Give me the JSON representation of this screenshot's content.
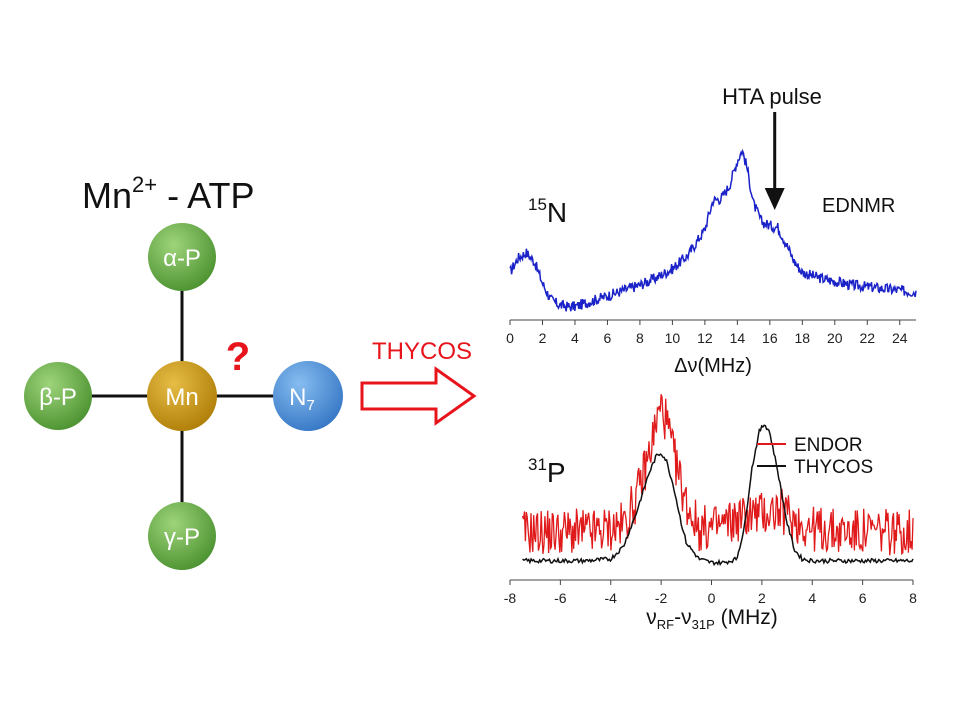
{
  "title": {
    "main": "Mn",
    "sup": "2+",
    "rest": " - ATP"
  },
  "nodes": {
    "alpha": {
      "label": "α-P",
      "color": "#5fa642"
    },
    "beta": {
      "label": "β-P",
      "color": "#5fa642"
    },
    "gamma": {
      "label": "γ-P",
      "color": "#5fa642"
    },
    "mn": {
      "label": "Mn",
      "color": "#c9960f"
    },
    "n7": {
      "label": "N",
      "sub": "7",
      "color": "#4a8fd8"
    }
  },
  "question_mark": "?",
  "arrow": {
    "label": "THYCOS",
    "color": "#e8141b"
  },
  "chart_data": [
    {
      "type": "line",
      "annotations": {
        "nucleus_sup": "15",
        "nucleus": "N",
        "method": "EDNMR",
        "pointer": "HTA pulse",
        "pointer_x": 16.3
      },
      "xlabel": "Δν(MHz)",
      "xlim": [
        0,
        25
      ],
      "xticks": [
        0,
        2,
        4,
        6,
        8,
        10,
        12,
        14,
        16,
        18,
        20,
        22,
        24
      ],
      "ylim": [
        0,
        1
      ],
      "series": [
        {
          "color": "#1a22c8",
          "x": [
            0,
            0.5,
            1,
            1.5,
            2,
            2.5,
            3,
            3.5,
            4,
            5,
            6,
            7,
            8,
            9,
            10,
            11,
            12,
            12.5,
            13,
            13.5,
            14,
            14.3,
            14.6,
            15,
            15.5,
            16,
            16.5,
            17,
            17.5,
            18,
            19,
            20,
            21,
            22,
            23,
            24,
            25
          ],
          "y": [
            0.22,
            0.3,
            0.33,
            0.28,
            0.16,
            0.07,
            0.04,
            0.03,
            0.03,
            0.06,
            0.09,
            0.12,
            0.15,
            0.19,
            0.24,
            0.32,
            0.46,
            0.62,
            0.63,
            0.7,
            0.84,
            0.9,
            0.8,
            0.6,
            0.5,
            0.48,
            0.47,
            0.38,
            0.28,
            0.22,
            0.19,
            0.17,
            0.15,
            0.14,
            0.13,
            0.12,
            0.11
          ]
        }
      ]
    },
    {
      "type": "line",
      "annotations": {
        "nucleus_sup": "31",
        "nucleus": "P"
      },
      "xlabel_parts": [
        "ν",
        "RF",
        "-ν",
        "31P",
        " (MHz)"
      ],
      "xlim": [
        -8,
        8
      ],
      "xticks": [
        -8,
        -6,
        -4,
        -2,
        0,
        2,
        4,
        6,
        8
      ],
      "ylim": [
        0,
        1
      ],
      "legend": "top-right",
      "series": [
        {
          "name": "ENDOR",
          "color": "#e01a1a",
          "x": [
            -7.5,
            -6,
            -4.5,
            -3.5,
            -3,
            -2.5,
            -2.2,
            -2,
            -1.8,
            -1.5,
            -1,
            -0.5,
            0,
            0.5,
            1,
            1.5,
            2,
            2.5,
            3,
            3.5,
            4,
            5,
            6,
            7,
            8
          ],
          "y": [
            0.2,
            0.2,
            0.2,
            0.24,
            0.38,
            0.62,
            0.8,
            0.9,
            0.82,
            0.62,
            0.36,
            0.22,
            0.22,
            0.24,
            0.27,
            0.3,
            0.3,
            0.32,
            0.3,
            0.25,
            0.22,
            0.2,
            0.2,
            0.2,
            0.2
          ]
        },
        {
          "name": "THYCOS",
          "color": "#111111",
          "x": [
            -7.5,
            -5,
            -4,
            -3.5,
            -3,
            -2.5,
            -2.2,
            -2,
            -1.8,
            -1.5,
            -1.2,
            -1,
            -0.5,
            0,
            0.5,
            1,
            1.3,
            1.6,
            1.9,
            2.1,
            2.3,
            2.6,
            3,
            3.3,
            3.6,
            4,
            5,
            6,
            7,
            8
          ],
          "y": [
            0.04,
            0.04,
            0.05,
            0.12,
            0.3,
            0.52,
            0.62,
            0.64,
            0.6,
            0.45,
            0.25,
            0.14,
            0.05,
            0.03,
            0.03,
            0.05,
            0.22,
            0.55,
            0.76,
            0.8,
            0.76,
            0.56,
            0.25,
            0.1,
            0.05,
            0.04,
            0.04,
            0.04,
            0.04,
            0.04
          ]
        }
      ]
    }
  ]
}
